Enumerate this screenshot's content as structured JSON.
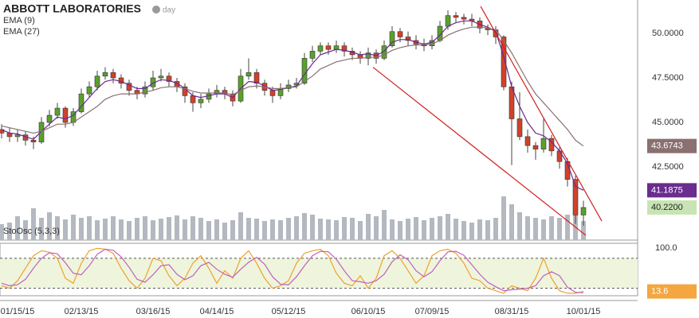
{
  "chart_data": {
    "type": "candlestick",
    "title": "ABBOTT LABORATORIES",
    "interval": "day",
    "up_color": "#5aa02c",
    "down_color": "#d2412a",
    "ohlc": [
      [
        44.6,
        44.9,
        44.1,
        44.4
      ],
      [
        44.4,
        44.7,
        43.9,
        44.2
      ],
      [
        44.2,
        44.6,
        43.9,
        44.3
      ],
      [
        44.3,
        44.5,
        43.7,
        44.0
      ],
      [
        44.0,
        44.2,
        43.5,
        43.9
      ],
      [
        43.9,
        45.3,
        43.8,
        45.0
      ],
      [
        45.0,
        45.7,
        44.8,
        45.4
      ],
      [
        45.4,
        46.1,
        45.2,
        45.8
      ],
      [
        45.8,
        45.9,
        44.7,
        45.0
      ],
      [
        45.0,
        45.8,
        44.8,
        45.6
      ],
      [
        45.6,
        46.9,
        45.5,
        46.6
      ],
      [
        46.6,
        47.3,
        46.4,
        47.0
      ],
      [
        47.0,
        47.9,
        46.8,
        47.6
      ],
      [
        47.6,
        48.1,
        47.4,
        47.8
      ],
      [
        47.8,
        48.0,
        47.2,
        47.5
      ],
      [
        47.5,
        47.7,
        46.9,
        47.2
      ],
      [
        47.2,
        47.4,
        46.5,
        46.8
      ],
      [
        46.8,
        47.0,
        46.3,
        46.6
      ],
      [
        46.6,
        47.3,
        46.4,
        47.0
      ],
      [
        47.0,
        47.9,
        46.8,
        47.5
      ],
      [
        47.5,
        48.0,
        47.3,
        47.6
      ],
      [
        47.6,
        47.8,
        47.0,
        47.3
      ],
      [
        47.3,
        47.5,
        46.7,
        47.0
      ],
      [
        47.0,
        47.2,
        46.1,
        46.5
      ],
      [
        46.5,
        46.7,
        45.6,
        46.1
      ],
      [
        46.1,
        46.6,
        45.8,
        46.3
      ],
      [
        46.3,
        46.9,
        46.1,
        46.6
      ],
      [
        46.6,
        47.1,
        46.4,
        46.8
      ],
      [
        46.8,
        47.0,
        46.3,
        46.6
      ],
      [
        46.6,
        46.8,
        45.9,
        46.2
      ],
      [
        46.2,
        48.0,
        46.1,
        47.6
      ],
      [
        47.6,
        48.6,
        47.4,
        47.8
      ],
      [
        47.8,
        48.0,
        46.9,
        47.2
      ],
      [
        47.2,
        47.4,
        46.5,
        46.8
      ],
      [
        46.8,
        47.0,
        46.1,
        46.5
      ],
      [
        46.5,
        47.2,
        46.3,
        46.9
      ],
      [
        46.9,
        47.4,
        46.7,
        47.1
      ],
      [
        47.1,
        47.5,
        46.9,
        47.2
      ],
      [
        47.2,
        48.9,
        47.1,
        48.6
      ],
      [
        48.6,
        49.3,
        48.4,
        49.0
      ],
      [
        49.0,
        49.5,
        48.8,
        49.3
      ],
      [
        49.3,
        49.5,
        48.8,
        49.1
      ],
      [
        49.1,
        49.6,
        48.9,
        49.3
      ],
      [
        49.3,
        49.5,
        48.7,
        49.0
      ],
      [
        49.0,
        49.2,
        48.5,
        48.8
      ],
      [
        48.8,
        49.0,
        48.3,
        48.6
      ],
      [
        48.6,
        49.2,
        48.2,
        48.9
      ],
      [
        48.9,
        49.1,
        48.3,
        48.6
      ],
      [
        48.6,
        49.6,
        48.5,
        49.3
      ],
      [
        49.3,
        50.4,
        49.2,
        50.1
      ],
      [
        50.1,
        50.3,
        49.5,
        49.8
      ],
      [
        49.8,
        50.1,
        49.3,
        49.6
      ],
      [
        49.6,
        49.9,
        49.1,
        49.4
      ],
      [
        49.4,
        49.7,
        49.0,
        49.3
      ],
      [
        49.3,
        49.9,
        49.1,
        49.6
      ],
      [
        49.6,
        50.7,
        49.5,
        50.4
      ],
      [
        50.4,
        51.3,
        50.2,
        51.0
      ],
      [
        51.0,
        51.2,
        50.6,
        50.9
      ],
      [
        50.9,
        51.1,
        50.5,
        50.8
      ],
      [
        50.8,
        51.1,
        50.4,
        50.7
      ],
      [
        50.7,
        50.9,
        50.0,
        50.3
      ],
      [
        50.3,
        50.5,
        49.9,
        50.2
      ],
      [
        50.2,
        50.4,
        49.4,
        49.8
      ],
      [
        49.8,
        49.9,
        46.8,
        47.0
      ],
      [
        47.0,
        47.3,
        42.6,
        45.2
      ],
      [
        45.2,
        46.7,
        44.0,
        44.2
      ],
      [
        44.2,
        44.6,
        43.3,
        43.7
      ],
      [
        43.7,
        43.9,
        42.9,
        43.5
      ],
      [
        43.5,
        45.2,
        43.3,
        44.1
      ],
      [
        44.1,
        44.3,
        43.1,
        43.4
      ],
      [
        43.4,
        43.6,
        42.4,
        42.8
      ],
      [
        42.8,
        43.0,
        41.4,
        41.8
      ],
      [
        41.8,
        42.0,
        39.3,
        39.8
      ],
      [
        39.8,
        40.6,
        39.2,
        40.22
      ]
    ],
    "close_label": "40.2200",
    "close_label_color": "#c8e4b4",
    "volume": [
      20,
      22,
      30,
      25,
      40,
      28,
      35,
      30,
      26,
      32,
      28,
      30,
      25,
      27,
      30,
      26,
      24,
      28,
      30,
      25,
      27,
      29,
      31,
      26,
      30,
      28,
      24,
      26,
      22,
      25,
      35,
      28,
      27,
      24,
      26,
      25,
      28,
      30,
      34,
      32,
      27,
      26,
      25,
      29,
      28,
      24,
      33,
      30,
      38,
      26,
      24,
      27,
      29,
      25,
      28,
      30,
      33,
      27,
      24,
      22,
      26,
      25,
      28,
      55,
      45,
      35,
      30,
      28,
      26,
      30,
      28,
      32,
      35,
      24
    ],
    "volume_color": "#b4b8c0",
    "series": [
      {
        "name": "EMA (9)",
        "color": "#6a2c8e",
        "last_label": "41.1875",
        "values": [
          44.6,
          44.4,
          44.35,
          44.2,
          44.05,
          44.5,
          44.9,
          45.3,
          45.2,
          45.4,
          45.9,
          46.4,
          46.9,
          47.3,
          47.4,
          47.3,
          47.1,
          46.9,
          46.9,
          47.2,
          47.4,
          47.35,
          47.2,
          46.9,
          46.5,
          46.4,
          46.5,
          46.6,
          46.6,
          46.4,
          46.9,
          47.3,
          47.25,
          47.05,
          46.8,
          46.85,
          46.95,
          47.05,
          47.7,
          48.3,
          48.8,
          48.95,
          49.1,
          49.05,
          48.95,
          48.8,
          48.85,
          48.75,
          49.0,
          49.5,
          49.65,
          49.65,
          49.5,
          49.4,
          49.5,
          49.9,
          50.4,
          50.6,
          50.7,
          50.7,
          50.5,
          50.35,
          50.1,
          48.7,
          47.0,
          45.9,
          45.0,
          44.4,
          44.25,
          43.9,
          43.4,
          42.7,
          41.4,
          41.1875
        ]
      },
      {
        "name": "EMA (27)",
        "color": "#8a7070",
        "last_label": "43.6743",
        "values": [
          44.8,
          44.7,
          44.6,
          44.5,
          44.4,
          44.5,
          44.7,
          44.9,
          44.9,
          45.0,
          45.3,
          45.6,
          45.9,
          46.3,
          46.5,
          46.6,
          46.6,
          46.6,
          46.7,
          46.8,
          46.95,
          47.0,
          47.0,
          46.9,
          46.75,
          46.65,
          46.65,
          46.65,
          46.65,
          46.55,
          46.8,
          47.0,
          47.05,
          47.0,
          46.9,
          46.9,
          46.95,
          47.0,
          47.3,
          47.6,
          48.0,
          48.2,
          48.4,
          48.5,
          48.6,
          48.6,
          48.65,
          48.65,
          48.8,
          49.05,
          49.2,
          49.3,
          49.35,
          49.35,
          49.4,
          49.6,
          49.9,
          50.1,
          50.25,
          50.35,
          50.35,
          50.3,
          50.2,
          49.6,
          48.9,
          48.1,
          47.3,
          46.6,
          46.1,
          45.6,
          45.1,
          44.6,
          44.0,
          43.6743
        ]
      }
    ],
    "trendlines": [
      {
        "x": [
          46.6,
          73.3
        ],
        "y": [
          48.1,
          38.66
        ]
      },
      {
        "x": [
          60.1,
          75.3
        ],
        "y": [
          51.52,
          39.46
        ]
      }
    ],
    "trendline_color": "#d02020",
    "xlim": [
      -0.2,
      79.8
    ],
    "xticks": [
      {
        "value": 2,
        "label": "01/15/15"
      },
      {
        "value": 10,
        "label": "02/13/15"
      },
      {
        "value": 19,
        "label": "03/16/15"
      },
      {
        "value": 27,
        "label": "04/14/15"
      },
      {
        "value": 36,
        "label": "05/12/15"
      },
      {
        "value": 46,
        "label": "06/10/15"
      },
      {
        "value": 54,
        "label": "07/09/15"
      },
      {
        "value": 64,
        "label": "08/31/15"
      },
      {
        "value": 73,
        "label": "10/01/15"
      }
    ],
    "ylim": [
      38.39,
      51.875
    ],
    "yticks": [
      {
        "value": 42.5,
        "label": "42.5000"
      },
      {
        "value": 45,
        "label": "45.0000"
      },
      {
        "value": 47.5,
        "label": "47.5000"
      },
      {
        "value": 50,
        "label": "50.0000"
      }
    ],
    "indicator": {
      "name": "StoOsc (5,3,3)",
      "ylim": [
        5,
        110
      ],
      "yticks": [
        {
          "value": 100,
          "label": "100.0"
        }
      ],
      "bands": [
        20,
        80
      ],
      "band_color": "#eef5dc",
      "last_label": "13.6",
      "last_label_color": "#f4a640",
      "series": [
        {
          "color": "#f0a030",
          "values": [
            25,
            20,
            35,
            60,
            85,
            95,
            92,
            80,
            40,
            30,
            70,
            95,
            100,
            98,
            90,
            60,
            35,
            20,
            40,
            80,
            75,
            45,
            25,
            40,
            70,
            85,
            60,
            30,
            55,
            40,
            80,
            95,
            70,
            40,
            20,
            25,
            35,
            70,
            90,
            95,
            98,
            85,
            50,
            30,
            25,
            45,
            20,
            40,
            85,
            95,
            80,
            55,
            30,
            45,
            85,
            95,
            98,
            90,
            70,
            40,
            35,
            20,
            15,
            10,
            25,
            20,
            15,
            40,
            80,
            40,
            15,
            10,
            10,
            13.6
          ]
        },
        {
          "color": "#c060c0",
          "values": [
            30,
            25,
            27,
            38,
            60,
            80,
            91,
            89,
            71,
            50,
            47,
            65,
            88,
            98,
            96,
            83,
            62,
            38,
            32,
            47,
            65,
            67,
            48,
            37,
            45,
            65,
            72,
            58,
            48,
            42,
            58,
            72,
            82,
            68,
            43,
            28,
            27,
            43,
            65,
            85,
            94,
            93,
            78,
            55,
            35,
            33,
            30,
            35,
            48,
            73,
            87,
            77,
            55,
            43,
            53,
            75,
            93,
            94,
            86,
            67,
            48,
            32,
            23,
            15,
            17,
            18,
            20,
            25,
            45,
            53,
            45,
            22,
            12,
            11
          ]
        }
      ]
    }
  }
}
